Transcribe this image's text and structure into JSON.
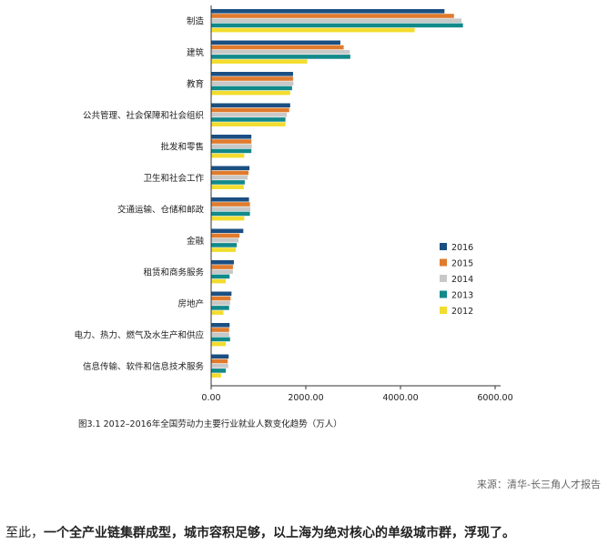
{
  "chart_data": {
    "type": "bar",
    "orientation": "horizontal",
    "categories": [
      "制造",
      "建筑",
      "教育",
      "公共管理、社会保障和社会组织",
      "批发和零售",
      "卫生和社会工作",
      "交通运输、仓储和邮政",
      "金融",
      "租赁和商务服务",
      "房地产",
      "电力、热力、燃气及水生产和供应",
      "信息传输、软件和信息技术服务"
    ],
    "series": [
      {
        "name": "2016",
        "color": "#1b4f82",
        "values": [
          4920,
          2720,
          1720,
          1660,
          840,
          800,
          790,
          670,
          470,
          420,
          380,
          360
        ]
      },
      {
        "name": "2015",
        "color": "#e07b2e",
        "values": [
          5120,
          2790,
          1720,
          1640,
          840,
          780,
          810,
          590,
          450,
          400,
          370,
          340
        ]
      },
      {
        "name": "2014",
        "color": "#c8c8c8",
        "values": [
          5280,
          2920,
          1730,
          1590,
          850,
          760,
          820,
          570,
          450,
          390,
          370,
          350
        ]
      },
      {
        "name": "2013",
        "color": "#12898a",
        "values": [
          5310,
          2930,
          1700,
          1560,
          840,
          700,
          810,
          530,
          380,
          370,
          390,
          300
        ]
      },
      {
        "name": "2012",
        "color": "#f2dc2e",
        "values": [
          4290,
          2020,
          1660,
          1560,
          690,
          680,
          690,
          510,
          300,
          250,
          300,
          200
        ]
      }
    ],
    "xlim": [
      0,
      6000
    ],
    "xticks": [
      "0.00",
      "2000.00",
      "4000.00",
      "6000.00"
    ],
    "legend_position": "right",
    "grid": false
  },
  "caption": "图3.1 2012–2016年全国劳动力主要行业就业人数变化趋势（万人）",
  "source": "来源：清华-长三角人才报告",
  "bottom_text": {
    "prefix": "至此，",
    "bold": "一个全产业链集群成型，城市容积足够，以上海为绝对核心的单级城市群，浮现了。"
  }
}
